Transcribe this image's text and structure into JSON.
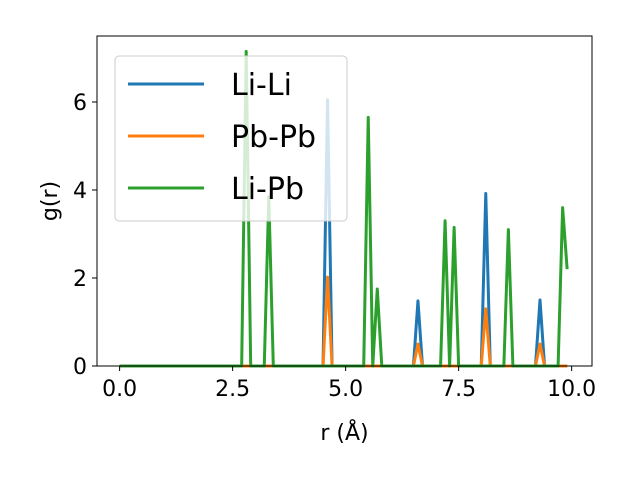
{
  "chart_data": {
    "type": "line",
    "xlabel": "r (Å)",
    "ylabel": "g(r)",
    "xlim": [
      -0.5,
      10.45
    ],
    "ylim": [
      0,
      7.5
    ],
    "xticks": [
      "0.0",
      "2.5",
      "5.0",
      "7.5",
      "10.0"
    ],
    "yticks": [
      "0",
      "2",
      "4",
      "6"
    ],
    "grid": false,
    "legend_placement": "upper-left",
    "series": [
      {
        "name": "Li-Li",
        "color": "#1f77b4",
        "x": [
          0,
          4.5,
          4.6,
          4.7,
          6.5,
          6.6,
          6.7,
          8.0,
          8.1,
          8.2,
          9.2,
          9.3,
          9.4,
          9.9
        ],
        "y": [
          0,
          0,
          6.05,
          0,
          0,
          1.48,
          0,
          0,
          3.92,
          0,
          0,
          1.5,
          0,
          0
        ]
      },
      {
        "name": "Pb-Pb",
        "color": "#ff7f0e",
        "x": [
          0,
          4.5,
          4.6,
          4.7,
          6.5,
          6.6,
          6.7,
          8.0,
          8.1,
          8.2,
          9.2,
          9.3,
          9.4,
          9.9
        ],
        "y": [
          0,
          0,
          2.02,
          0,
          0,
          0.5,
          0,
          0,
          1.3,
          0,
          0,
          0.5,
          0,
          0
        ]
      },
      {
        "name": "Li-Pb",
        "color": "#2ca02c",
        "x": [
          0,
          2.7,
          2.8,
          2.9,
          3.2,
          3.3,
          3.4,
          5.4,
          5.5,
          5.6,
          5.7,
          5.8,
          7.1,
          7.2,
          7.3,
          7.4,
          7.5,
          8.5,
          8.6,
          8.7,
          9.7,
          9.8,
          9.9
        ],
        "y": [
          0,
          0,
          7.15,
          0,
          0,
          3.85,
          0,
          0,
          5.65,
          0,
          1.75,
          0,
          0,
          3.3,
          0,
          3.15,
          0,
          0,
          3.1,
          0,
          0,
          3.6,
          2.2
        ]
      }
    ]
  }
}
